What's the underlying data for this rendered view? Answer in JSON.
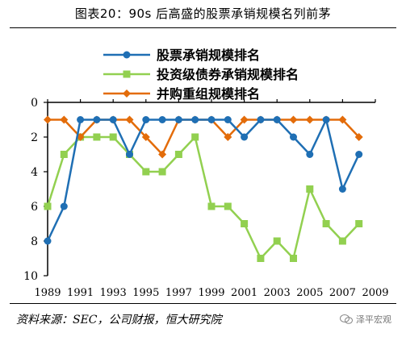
{
  "title": "图表20：90s 后高盛的股票承销规模名列前茅",
  "footer": {
    "source": "资料来源：SEC，公司财报，恒大研究院"
  },
  "watermark": {
    "text": "泽平宏观"
  },
  "chart_data": {
    "type": "line",
    "x": [
      1989,
      1990,
      1991,
      1992,
      1993,
      1994,
      1995,
      1996,
      1997,
      1998,
      1999,
      2000,
      2001,
      2002,
      2003,
      2004,
      2005,
      2006,
      2007,
      2008
    ],
    "xticks": [
      1989,
      1991,
      1993,
      1995,
      1997,
      1999,
      2001,
      2003,
      2005,
      2007,
      2009
    ],
    "xlim": [
      1989,
      2009
    ],
    "yticks": [
      0,
      2,
      4,
      6,
      8,
      10
    ],
    "ylim": [
      0,
      10
    ],
    "y_inverted": true,
    "grid": false,
    "legend_position": "top-center",
    "series": [
      {
        "name": "股票承销规模排名",
        "color": "#1f6fb4",
        "marker": "circle",
        "values": [
          8,
          6,
          1,
          1,
          1,
          3,
          1,
          1,
          1,
          1,
          1,
          1,
          2,
          1,
          1,
          2,
          3,
          1,
          5,
          3
        ]
      },
      {
        "name": "投资级债券承销规模排名",
        "color": "#92d050",
        "marker": "square",
        "values": [
          6,
          3,
          2,
          2,
          2,
          3,
          4,
          4,
          3,
          2,
          6,
          6,
          7,
          9,
          8,
          9,
          5,
          7,
          8,
          7
        ]
      },
      {
        "name": "并购重组规模排名",
        "color": "#e36c0a",
        "marker": "diamond",
        "values": [
          1,
          1,
          2,
          1,
          1,
          1,
          2,
          3,
          1,
          1,
          1,
          2,
          1,
          1,
          1,
          1,
          1,
          1,
          1,
          2
        ]
      }
    ]
  }
}
